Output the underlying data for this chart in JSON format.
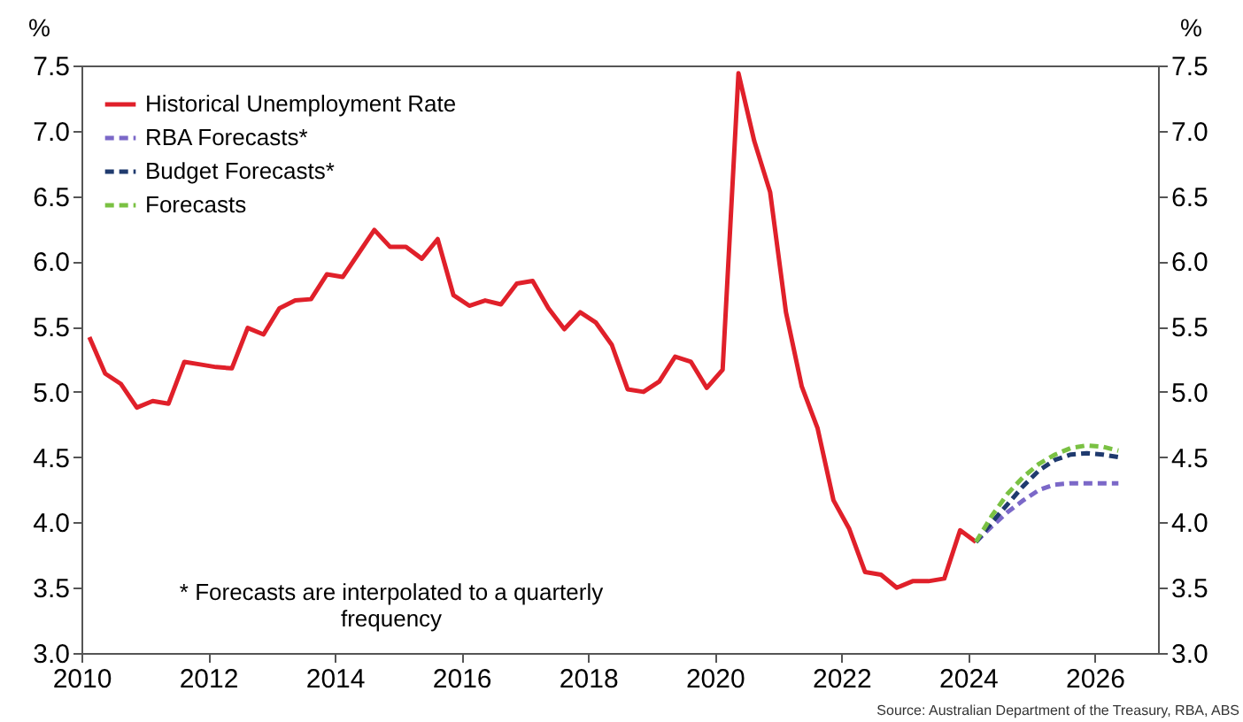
{
  "chart_data": {
    "type": "line",
    "ylabel": "%",
    "y2label": "%",
    "annotations": [
      "* Forecasts are interpolated to a quarterly frequency",
      "Source: Australian Department of the Treasury, RBA, ABS"
    ],
    "xlim": [
      2010,
      2027
    ],
    "xticks": [
      2010,
      2012,
      2014,
      2016,
      2018,
      2020,
      2022,
      2024,
      2026
    ],
    "ylim": [
      3,
      7.5
    ],
    "yticks": [
      {
        "value": 3,
        "label": "3.0"
      },
      3.5,
      {
        "value": 4,
        "label": "4.0"
      },
      4.5,
      {
        "value": 5,
        "label": "5.0"
      },
      5.5,
      {
        "value": 6,
        "label": "6.0"
      },
      6.5,
      {
        "value": 7,
        "label": "7.0"
      },
      7.5
    ],
    "y2lim": [
      3,
      7.5
    ],
    "y2ticks": [
      {
        "value": 3,
        "label": "3.0"
      },
      3.5,
      {
        "value": 4,
        "label": "4.0"
      },
      4.5,
      {
        "value": 5,
        "label": "5.0"
      },
      5.5,
      {
        "value": 6,
        "label": "6.0"
      },
      6.5,
      {
        "value": 7,
        "label": "7.0"
      },
      7.5
    ],
    "grid": false,
    "legend": "top left",
    "series": [
      {
        "name": "Historical Unemployment Rate",
        "color": "#e0202a",
        "line_style": "solid",
        "x": [
          2010.125,
          2010.375,
          2010.625,
          2010.875,
          2011.125,
          2011.375,
          2011.625,
          2011.875,
          2012.125,
          2012.375,
          2012.625,
          2012.875,
          2013.125,
          2013.375,
          2013.625,
          2013.875,
          2014.125,
          2014.375,
          2014.625,
          2014.875,
          2015.125,
          2015.375,
          2015.625,
          2015.875,
          2016.125,
          2016.375,
          2016.625,
          2016.875,
          2017.125,
          2017.375,
          2017.625,
          2017.875,
          2018.125,
          2018.375,
          2018.625,
          2018.875,
          2019.125,
          2019.375,
          2019.625,
          2019.875,
          2020.125,
          2020.375,
          2020.625,
          2020.875,
          2021.125,
          2021.375,
          2021.625,
          2021.875,
          2022.125,
          2022.375,
          2022.625,
          2022.875,
          2023.125,
          2023.375,
          2023.625,
          2023.875,
          2024.125
        ],
        "values": [
          5.42,
          5.14,
          5.06,
          4.88,
          4.93,
          4.91,
          5.23,
          5.21,
          5.19,
          5.18,
          5.49,
          5.44,
          5.64,
          5.7,
          5.71,
          5.9,
          5.88,
          6.06,
          6.24,
          6.11,
          6.11,
          6.02,
          6.17,
          5.74,
          5.66,
          5.7,
          5.67,
          5.83,
          5.85,
          5.64,
          5.48,
          5.61,
          5.53,
          5.36,
          5.02,
          5.0,
          5.08,
          5.27,
          5.23,
          5.03,
          5.17,
          7.44,
          6.92,
          6.53,
          5.61,
          5.04,
          4.72,
          4.17,
          3.95,
          3.62,
          3.6,
          3.5,
          3.55,
          3.55,
          3.57,
          3.94,
          3.85
        ]
      },
      {
        "name": "RBA Forecasts*",
        "color": "#7b68c8",
        "line_style": "dashed",
        "x": [
          2024.125,
          2024.375,
          2024.625,
          2024.875,
          2025.125,
          2025.375,
          2025.625,
          2025.875,
          2026.125,
          2026.375
        ],
        "values": [
          3.85,
          3.97,
          4.08,
          4.17,
          4.25,
          4.29,
          4.3,
          4.3,
          4.3,
          4.3
        ]
      },
      {
        "name": "Budget Forecasts*",
        "color": "#1f3a6e",
        "line_style": "dashed",
        "x": [
          2024.125,
          2024.375,
          2024.625,
          2024.875,
          2025.125,
          2025.375,
          2025.625,
          2025.875,
          2026.125,
          2026.375
        ],
        "values": [
          3.85,
          4.0,
          4.14,
          4.28,
          4.4,
          4.48,
          4.52,
          4.53,
          4.52,
          4.5
        ]
      },
      {
        "name": "Forecasts",
        "color": "#7ac143",
        "line_style": "dashed",
        "x": [
          2024.125,
          2024.375,
          2024.625,
          2024.875,
          2025.125,
          2025.375,
          2025.625,
          2025.875,
          2026.125,
          2026.375
        ],
        "values": [
          3.85,
          4.05,
          4.22,
          4.35,
          4.45,
          4.52,
          4.57,
          4.59,
          4.58,
          4.55
        ]
      }
    ]
  }
}
